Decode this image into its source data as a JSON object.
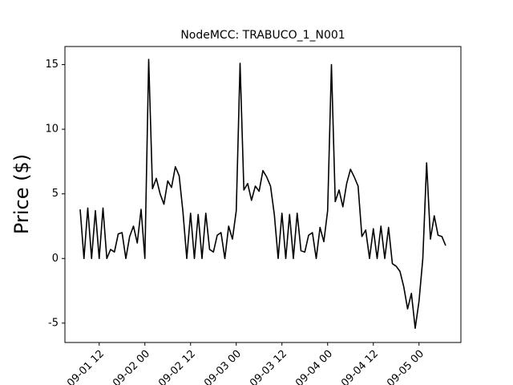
{
  "chart_data": {
    "type": "line",
    "title": "NodeMCC: TRABUCO_1_N001",
    "y_label": "Price ($)",
    "color": "#000000",
    "x": [
      "09-01 07",
      "09-01 08",
      "09-01 09",
      "09-01 10",
      "09-01 11",
      "09-01 12",
      "09-01 13",
      "09-01 14",
      "09-01 15",
      "09-01 16",
      "09-01 17",
      "09-01 18",
      "09-01 19",
      "09-01 20",
      "09-01 21",
      "09-01 22",
      "09-01 23",
      "09-02 00",
      "09-02 01",
      "09-02 02",
      "09-02 03",
      "09-02 04",
      "09-02 05",
      "09-02 06",
      "09-02 07",
      "09-02 08",
      "09-02 09",
      "09-02 10",
      "09-02 11",
      "09-02 12",
      "09-02 13",
      "09-02 14",
      "09-02 15",
      "09-02 16",
      "09-02 17",
      "09-02 18",
      "09-02 19",
      "09-02 20",
      "09-02 21",
      "09-02 22",
      "09-02 23",
      "09-03 00",
      "09-03 01",
      "09-03 02",
      "09-03 03",
      "09-03 04",
      "09-03 05",
      "09-03 06",
      "09-03 07",
      "09-03 08",
      "09-03 09",
      "09-03 10",
      "09-03 11",
      "09-03 12",
      "09-03 13",
      "09-03 14",
      "09-03 15",
      "09-03 16",
      "09-03 17",
      "09-03 18",
      "09-03 19",
      "09-03 20",
      "09-03 21",
      "09-03 22",
      "09-03 23",
      "09-04 00",
      "09-04 01",
      "09-04 02",
      "09-04 03",
      "09-04 04",
      "09-04 05",
      "09-04 06",
      "09-04 07",
      "09-04 08",
      "09-04 09",
      "09-04 10",
      "09-04 11",
      "09-04 12",
      "09-04 13",
      "09-04 14",
      "09-04 15",
      "09-04 16",
      "09-04 17",
      "09-04 18",
      "09-04 19",
      "09-04 20",
      "09-04 21",
      "09-04 22",
      "09-04 23",
      "09-05 00",
      "09-05 01",
      "09-05 02",
      "09-05 03",
      "09-05 04",
      "09-05 05",
      "09-05 06",
      "09-05 07"
    ],
    "values": [
      3.8,
      0,
      3.9,
      0,
      3.7,
      0,
      3.9,
      0,
      0.7,
      0.5,
      1.9,
      2.0,
      0,
      1.7,
      2.5,
      1.2,
      3.8,
      0,
      15.4,
      5.4,
      6.2,
      5.0,
      4.2,
      6.0,
      5.5,
      7.1,
      6.4,
      3.6,
      0,
      3.5,
      0,
      3.4,
      0,
      3.5,
      0.7,
      0.5,
      1.8,
      2.0,
      0,
      2.5,
      1.5,
      3.7,
      15.1,
      5.3,
      5.8,
      4.5,
      5.6,
      5.2,
      6.8,
      6.3,
      5.6,
      3.4,
      0,
      3.5,
      0,
      3.4,
      0,
      3.5,
      0.6,
      0.5,
      1.8,
      2.0,
      0,
      2.4,
      1.3,
      3.7,
      15.0,
      4.4,
      5.3,
      4.0,
      5.8,
      6.9,
      6.3,
      5.6,
      1.7,
      2.2,
      0,
      2.3,
      0,
      2.5,
      0,
      2.4,
      -0.4,
      -0.6,
      -1.0,
      -2.2,
      -3.9,
      -2.7,
      -5.4,
      -3.3,
      0,
      7.4,
      1.5,
      3.3,
      1.8,
      1.7,
      1.0
    ],
    "xlim": [
      "09-01 03",
      "09-05 11"
    ],
    "xticks": [
      "09-01 12",
      "09-02 00",
      "09-02 12",
      "09-03 00",
      "09-03 12",
      "09-04 00",
      "09-04 12",
      "09-05 00"
    ],
    "ylim": [
      -6.5,
      16.4
    ],
    "yticks": [
      -5,
      0,
      5,
      10,
      15
    ]
  }
}
